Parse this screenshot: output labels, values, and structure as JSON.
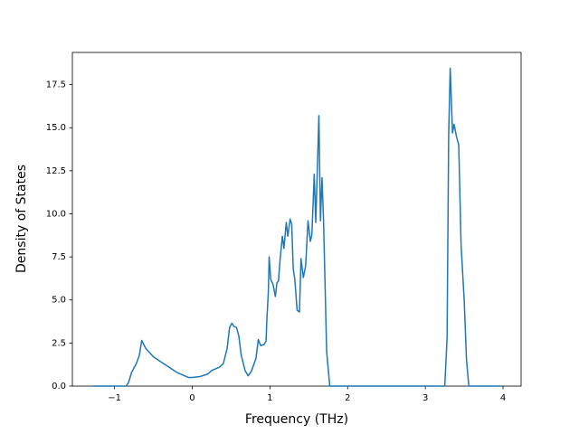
{
  "chart_data": {
    "type": "line",
    "x_label": "Frequency (THz)",
    "y_label": "Density of States",
    "x": [
      -1.28,
      -0.85,
      -0.82,
      -0.78,
      -0.72,
      -0.68,
      -0.65,
      -0.6,
      -0.5,
      -0.4,
      -0.3,
      -0.2,
      -0.1,
      -0.05,
      0.0,
      0.1,
      0.2,
      0.25,
      0.3,
      0.35,
      0.4,
      0.45,
      0.48,
      0.51,
      0.54,
      0.57,
      0.6,
      0.63,
      0.68,
      0.72,
      0.76,
      0.82,
      0.85,
      0.88,
      0.92,
      0.95,
      0.96,
      0.98,
      0.99,
      1.01,
      1.04,
      1.07,
      1.09,
      1.11,
      1.13,
      1.16,
      1.18,
      1.21,
      1.23,
      1.26,
      1.28,
      1.3,
      1.32,
      1.35,
      1.38,
      1.4,
      1.43,
      1.46,
      1.49,
      1.52,
      1.54,
      1.57,
      1.59,
      1.63,
      1.65,
      1.67,
      1.69,
      1.73,
      1.77,
      3.25,
      3.28,
      3.3,
      3.32,
      3.35,
      3.37,
      3.4,
      3.43,
      3.46,
      3.5,
      3.53,
      3.56,
      3.97
    ],
    "values": [
      0,
      0,
      0.2,
      0.8,
      1.3,
      1.8,
      2.65,
      2.2,
      1.7,
      1.4,
      1.1,
      0.8,
      0.6,
      0.5,
      0.5,
      0.55,
      0.7,
      0.9,
      1.0,
      1.1,
      1.3,
      2.2,
      3.4,
      3.65,
      3.45,
      3.4,
      2.9,
      1.8,
      0.9,
      0.6,
      0.85,
      1.6,
      2.7,
      2.35,
      2.4,
      2.6,
      3.8,
      5.5,
      7.5,
      6.2,
      5.9,
      5.2,
      6.0,
      6.1,
      7.3,
      8.7,
      8.0,
      9.5,
      8.7,
      9.7,
      9.4,
      6.8,
      6.2,
      4.4,
      4.3,
      7.4,
      6.3,
      7.0,
      9.6,
      8.4,
      8.8,
      12.3,
      9.5,
      15.7,
      9.6,
      12.1,
      9.6,
      2,
      0,
      0,
      2.8,
      14.5,
      18.45,
      14.7,
      15.2,
      14.5,
      14.0,
      8.2,
      5,
      1.5,
      0,
      0
    ],
    "color": "#1f77b4",
    "xlim": [
      -1.5425,
      4.2325
    ],
    "xticks": [
      {
        "value": -1,
        "label": "−1"
      },
      0,
      1,
      2,
      3,
      4
    ],
    "ylim": [
      0,
      19.37
    ],
    "yticks": [
      {
        "value": 0,
        "label": "0.0"
      },
      2.5,
      {
        "value": 5,
        "label": "5.0"
      },
      7.5,
      {
        "value": 10,
        "label": "10.0"
      },
      12.5,
      {
        "value": 15,
        "label": "15.0"
      },
      17.5
    ]
  }
}
